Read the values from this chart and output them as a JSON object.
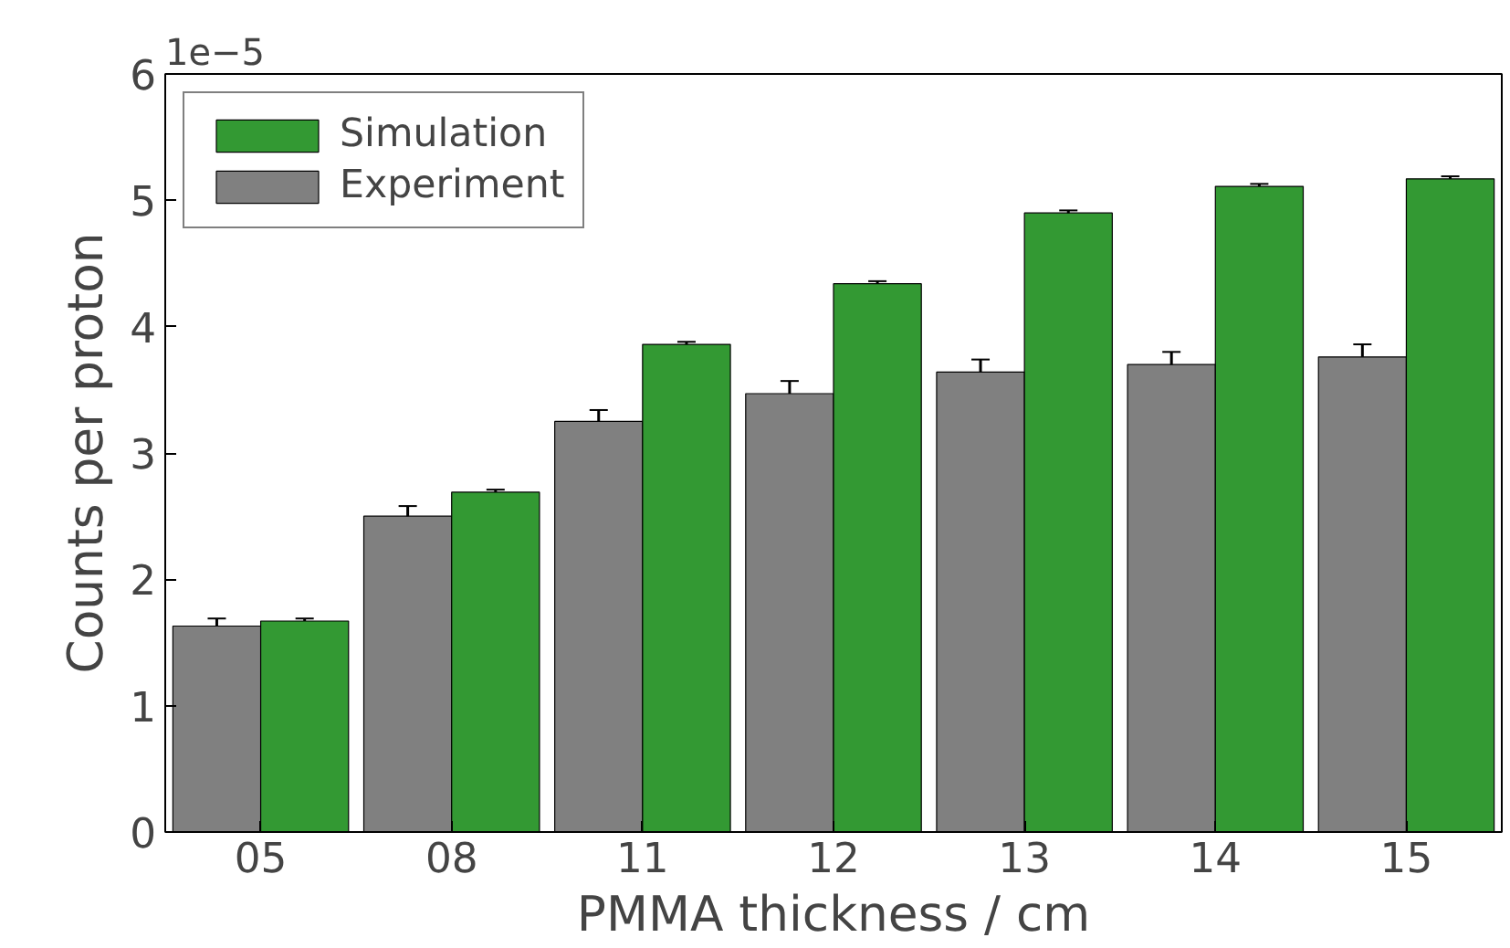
{
  "chart_data": {
    "type": "bar",
    "xlabel": "PMMA thickness / cm",
    "ylabel": "Counts per proton",
    "categories": [
      "05",
      "08",
      "11",
      "12",
      "13",
      "14",
      "15"
    ],
    "series": [
      {
        "name": "Experiment",
        "color": "#808080",
        "values": [
          1.63,
          2.5,
          3.25,
          3.47,
          3.64,
          3.7,
          3.76
        ],
        "errors": [
          0.06,
          0.08,
          0.09,
          0.1,
          0.1,
          0.1,
          0.1
        ]
      },
      {
        "name": "Simulation",
        "color": "#339933",
        "values": [
          1.67,
          2.69,
          3.86,
          4.34,
          4.9,
          5.11,
          5.17
        ],
        "errors": [
          0.02,
          0.02,
          0.02,
          0.02,
          0.02,
          0.02,
          0.02
        ]
      }
    ],
    "ylim": [
      0,
      6
    ],
    "yticks": [
      0,
      1,
      2,
      3,
      4,
      5,
      6
    ],
    "grid": false,
    "legend": "top left",
    "annotations": [
      "1e−5"
    ]
  }
}
